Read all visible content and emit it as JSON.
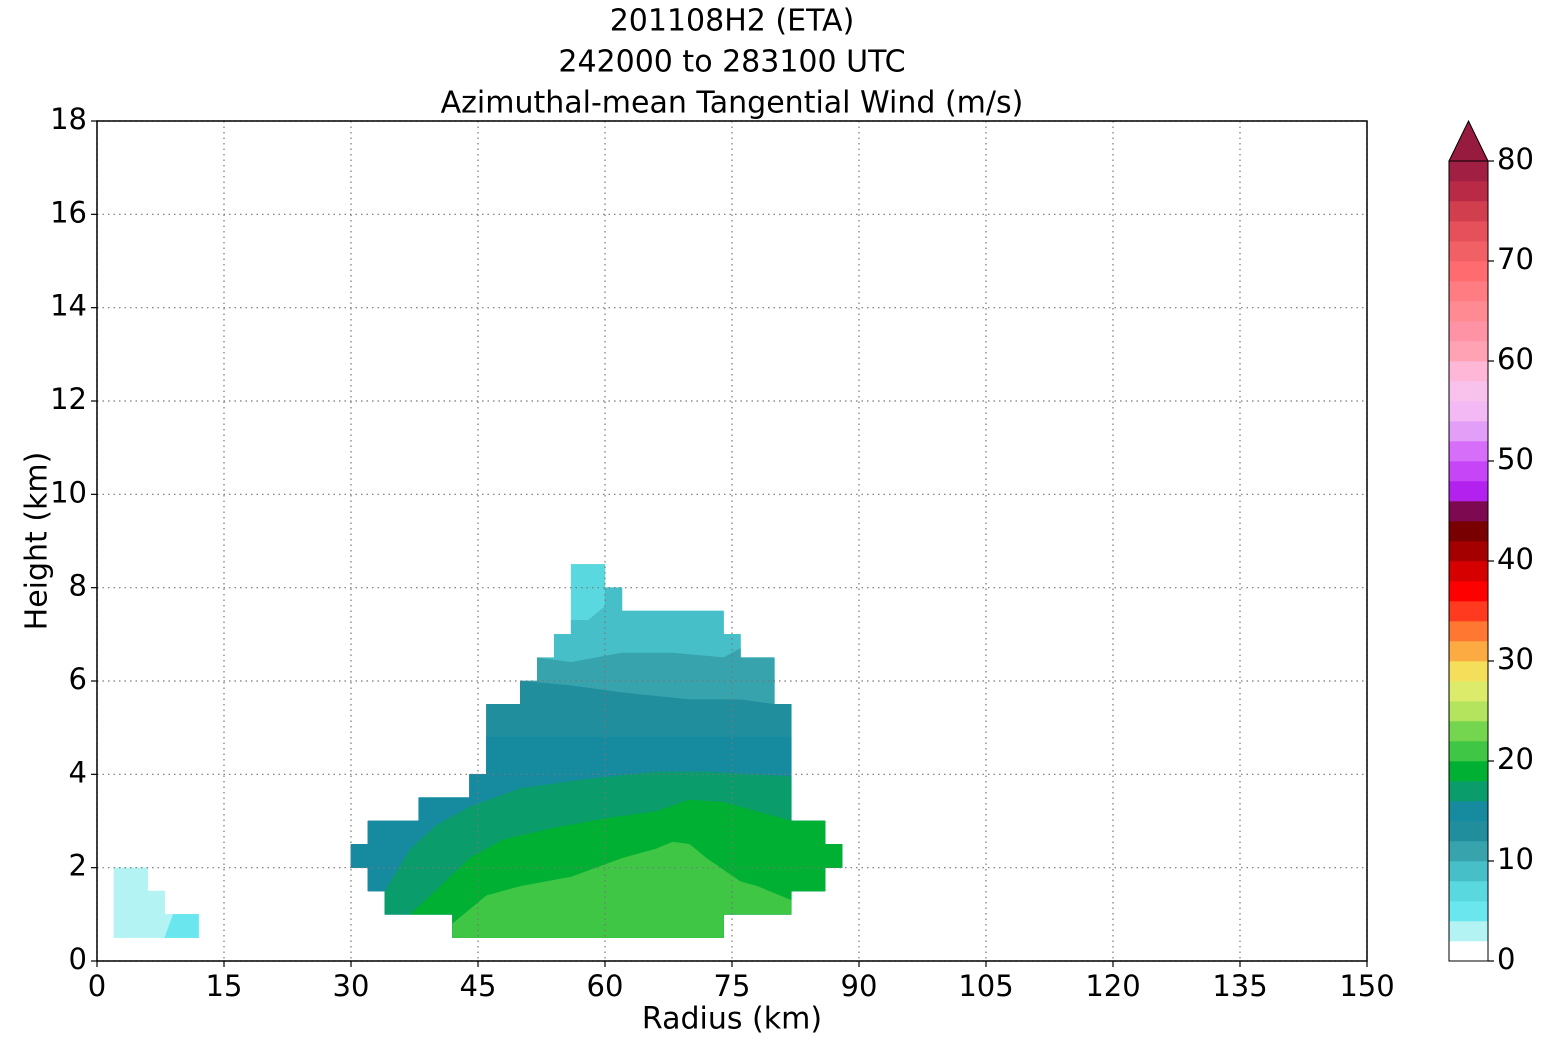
{
  "chart_data": {
    "type": "contourf",
    "title": [
      "201108H2 (ETA)",
      "242000 to 283100 UTC",
      "Azimuthal-mean Tangential Wind (m/s)"
    ],
    "xlabel": "Radius (km)",
    "ylabel": "Height (km)",
    "xlim": [
      0,
      150
    ],
    "xticks": [
      0,
      15,
      30,
      45,
      60,
      75,
      90,
      105,
      120,
      135,
      150
    ],
    "ylim": [
      0,
      18
    ],
    "yticks": [
      0,
      2,
      4,
      6,
      8,
      10,
      12,
      14,
      16,
      18
    ],
    "grid": true,
    "colorbar": {
      "lim": [
        0,
        80
      ],
      "ticks": [
        0,
        10,
        20,
        30,
        40,
        50,
        60,
        70,
        80
      ],
      "extend_color": "#971a3f",
      "colors": [
        "#ffffff",
        "#b3f3f3",
        "#6ae7ee",
        "#5ad8e0",
        "#47bfc9",
        "#36a3ad",
        "#218e9e",
        "#168ba0",
        "#0a9c6a",
        "#00b032",
        "#3ec644",
        "#74d64f",
        "#b4e35e",
        "#dcec6a",
        "#f5df5a",
        "#fbab42",
        "#ff7730",
        "#ff3a1e",
        "#ff0000",
        "#d60000",
        "#a50000",
        "#780000",
        "#7d0a50",
        "#b321ee",
        "#c646f7",
        "#d66ef9",
        "#e39ef7",
        "#f3b9f5",
        "#f9c2ed",
        "#ffb7d7",
        "#ffa2b3",
        "#ff93a6",
        "#ff8a92",
        "#ff7d82",
        "#ff6b6e",
        "#f06065",
        "#e5505a",
        "#d13f4f",
        "#b82a45",
        "#a01f43"
      ]
    },
    "regions": [
      {
        "level": 2,
        "x": [
          2,
          12,
          12,
          8,
          8,
          6,
          6,
          2
        ],
        "y": [
          0.5,
          0.5,
          1,
          1,
          1.5,
          1.5,
          2,
          2
        ]
      },
      {
        "level": 4,
        "x": [
          8,
          12,
          12,
          9
        ],
        "y": [
          0.5,
          0.5,
          1,
          1
        ]
      },
      {
        "level": 6,
        "x": [
          42,
          42,
          34,
          34,
          32,
          32,
          30,
          30,
          32,
          32,
          38,
          38,
          44,
          44,
          46,
          46,
          50,
          50,
          52,
          52,
          54,
          54,
          56,
          56,
          60,
          60,
          62,
          62,
          74,
          74,
          76,
          76,
          80,
          80,
          82,
          82,
          86,
          86,
          88,
          88,
          86,
          86,
          82,
          82,
          74,
          74
        ],
        "y": [
          0.5,
          1,
          1,
          1.5,
          1.5,
          2,
          2,
          2.5,
          2.5,
          3,
          3,
          3.5,
          3.5,
          4,
          4,
          5.5,
          5.5,
          6,
          6,
          6.5,
          6.5,
          7,
          7,
          8.5,
          8.5,
          8,
          8,
          7.5,
          7.5,
          7,
          7,
          6.5,
          6.5,
          5.5,
          5.5,
          3,
          3,
          2.5,
          2.5,
          2,
          2,
          1.5,
          1.5,
          1,
          1,
          0.5
        ]
      },
      {
        "level": 8,
        "x": [
          56,
          58,
          60,
          60,
          62,
          62,
          74,
          74,
          76,
          76,
          80,
          80,
          82,
          82,
          86,
          86,
          88,
          88,
          86,
          86,
          82,
          82,
          74,
          74,
          42,
          42,
          34,
          34,
          32,
          32,
          30,
          30,
          32,
          32,
          38,
          38,
          44,
          44,
          46,
          46,
          50,
          50,
          52,
          52,
          54,
          54,
          56
        ],
        "y": [
          7.3,
          7.3,
          7.6,
          8,
          8,
          7.5,
          7.5,
          7,
          7,
          6.5,
          6.5,
          5.5,
          5.5,
          3,
          3,
          2.5,
          2.5,
          2,
          2,
          1.5,
          1.5,
          1,
          1,
          0.5,
          0.5,
          1,
          1,
          1.5,
          1.5,
          2,
          2,
          2.5,
          2.5,
          3,
          3,
          3.5,
          3.5,
          4,
          4,
          5.5,
          5.5,
          6,
          6,
          6.5,
          6.5,
          7,
          7
        ]
      },
      {
        "level": 10,
        "x": [
          52,
          56,
          62,
          68,
          74,
          76,
          76,
          80,
          80,
          82,
          82,
          86,
          86,
          88,
          88,
          86,
          86,
          82,
          82,
          74,
          74,
          42,
          42,
          34,
          34,
          32,
          32,
          30,
          30,
          32,
          32,
          38,
          38,
          44,
          44,
          46,
          46,
          50,
          50,
          52
        ],
        "y": [
          6.5,
          6.4,
          6.6,
          6.6,
          6.5,
          6.7,
          6.5,
          6.5,
          5.5,
          5.5,
          3,
          3,
          2.5,
          2.5,
          2,
          2,
          1.5,
          1.5,
          1,
          1,
          0.5,
          0.5,
          1,
          1,
          1.5,
          1.5,
          2,
          2,
          2.5,
          2.5,
          3,
          3,
          3.5,
          3.5,
          4,
          4,
          5.5,
          5.5,
          6,
          6
        ]
      },
      {
        "level": 12,
        "x": [
          50,
          56,
          62,
          70,
          76,
          80,
          82,
          82,
          86,
          86,
          88,
          88,
          86,
          86,
          82,
          82,
          74,
          74,
          42,
          42,
          34,
          34,
          32,
          32,
          30,
          30,
          32,
          32,
          38,
          38,
          44,
          44,
          46,
          46,
          50
        ],
        "y": [
          6,
          5.9,
          5.75,
          5.6,
          5.6,
          5.5,
          5.5,
          3,
          3,
          2.5,
          2.5,
          2,
          2,
          1.5,
          1.5,
          1,
          1,
          0.5,
          0.5,
          1,
          1,
          1.5,
          1.5,
          2,
          2,
          2.5,
          2.5,
          3,
          3,
          3.5,
          3.5,
          4,
          4,
          5.5,
          5.5
        ]
      },
      {
        "level": 14,
        "x": [
          46,
          60,
          70,
          82,
          82,
          86,
          86,
          88,
          88,
          86,
          86,
          82,
          82,
          74,
          74,
          42,
          42,
          34,
          34,
          32,
          32,
          30,
          30,
          32,
          32,
          38,
          38,
          44,
          44,
          46
        ],
        "y": [
          4.8,
          4.8,
          4.8,
          4.8,
          3,
          3,
          2.5,
          2.5,
          2,
          2,
          1.5,
          1.5,
          1,
          1,
          0.5,
          0.5,
          1,
          1,
          1.5,
          1.5,
          2,
          2,
          2.5,
          2.5,
          3,
          3,
          3.5,
          3.5,
          4,
          4
        ]
      },
      {
        "level": 16,
        "x": [
          34,
          35,
          37,
          40,
          44,
          50,
          58,
          66,
          72,
          82,
          82,
          86,
          86,
          88,
          88,
          86,
          86,
          82,
          82,
          74,
          74,
          42,
          42,
          34
        ],
        "y": [
          1.5,
          1.8,
          2.4,
          2.9,
          3.3,
          3.7,
          3.9,
          4.05,
          4.05,
          3.95,
          3,
          3,
          2.5,
          2.5,
          2,
          2,
          1.5,
          1.5,
          1,
          1,
          0.5,
          0.5,
          1,
          1
        ]
      },
      {
        "level": 18,
        "x": [
          37,
          40,
          44,
          48,
          54,
          60,
          66,
          70,
          74,
          80,
          82,
          86,
          86,
          88,
          88,
          86,
          86,
          82,
          82,
          74,
          74,
          42,
          42
        ],
        "y": [
          1,
          1.5,
          2.2,
          2.6,
          2.85,
          3.05,
          3.2,
          3.45,
          3.4,
          3.1,
          3,
          3,
          2.5,
          2.5,
          2,
          2,
          1.5,
          1.5,
          1,
          1,
          0.5,
          0.5,
          1
        ]
      },
      {
        "level": 20,
        "x": [
          42,
          44,
          46,
          50,
          56,
          62,
          66,
          68,
          70,
          72,
          76,
          78,
          82,
          82,
          74,
          74,
          42
        ],
        "y": [
          0.8,
          1.1,
          1.4,
          1.6,
          1.8,
          2.2,
          2.4,
          2.55,
          2.5,
          2.2,
          1.7,
          1.6,
          1.3,
          1,
          1,
          0.5,
          0.5
        ]
      }
    ]
  }
}
